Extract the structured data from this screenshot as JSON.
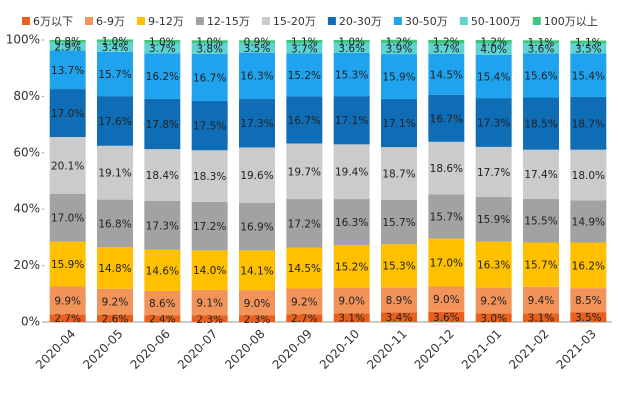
{
  "chart_data": {
    "type": "stacked_bar",
    "categories": [
      "2020-04",
      "2020-05",
      "2020-06",
      "2020-07",
      "2020-08",
      "2020-09",
      "2020-10",
      "2020-11",
      "2020-12",
      "2021-01",
      "2021-02",
      "2021-03"
    ],
    "ylim": [
      0,
      100
    ],
    "yticks": [
      {
        "value": 0,
        "label": "0%"
      },
      {
        "value": 20,
        "label": "20%"
      },
      {
        "value": 40,
        "label": "40%"
      },
      {
        "value": 60,
        "label": "60%"
      },
      {
        "value": 80,
        "label": "80%"
      },
      {
        "value": 100,
        "label": "100%"
      }
    ],
    "series": [
      {
        "name": "6万以下",
        "color": "#e8601c",
        "values": [
          2.7,
          2.6,
          2.4,
          2.3,
          2.3,
          2.7,
          3.1,
          3.4,
          3.6,
          3.0,
          3.1,
          3.5
        ],
        "value_labels": [
          "2.7%",
          "2.6%",
          "2.4%",
          "2.3%",
          "2.3%",
          "2.7%",
          "3.1%",
          "3.4%",
          "3.6%",
          "3.0%",
          "3.1%",
          "3.5%"
        ]
      },
      {
        "name": "6-9万",
        "color": "#f2935a",
        "values": [
          9.9,
          9.2,
          8.6,
          9.1,
          9.0,
          9.2,
          9.0,
          8.9,
          9.0,
          9.2,
          9.4,
          8.5
        ],
        "value_labels": [
          "9.9%",
          "9.2%",
          "8.6%",
          "9.1%",
          "9.0%",
          "9.2%",
          "9.0%",
          "8.9%",
          "9.0%",
          "9.2%",
          "9.4%",
          "8.5%"
        ]
      },
      {
        "name": "9-12万",
        "color": "#ffc000",
        "values": [
          15.9,
          14.8,
          14.6,
          14.0,
          14.1,
          14.5,
          15.2,
          15.3,
          17.0,
          16.3,
          15.7,
          16.2
        ],
        "value_labels": [
          "15.9%",
          "14.8%",
          "14.6%",
          "14.0%",
          "14.1%",
          "14.5%",
          "15.2%",
          "15.3%",
          "17.0%",
          "16.3%",
          "15.7%",
          "16.2%"
        ]
      },
      {
        "name": "12-15万",
        "color": "#a2a2a2",
        "values": [
          17.0,
          16.8,
          17.3,
          17.2,
          16.9,
          17.2,
          16.3,
          15.7,
          15.7,
          15.9,
          15.5,
          14.9
        ],
        "value_labels": [
          "17.0%",
          "16.8%",
          "17.3%",
          "17.2%",
          "16.9%",
          "17.2%",
          "16.3%",
          "15.7%",
          "15.7%",
          "15.9%",
          "15.5%",
          "14.9%"
        ]
      },
      {
        "name": "15-20万",
        "color": "#cbcbcb",
        "values": [
          20.1,
          19.1,
          18.4,
          18.3,
          19.6,
          19.7,
          19.4,
          18.7,
          18.6,
          17.7,
          17.4,
          18.0
        ],
        "value_labels": [
          "20.1%",
          "19.1%",
          "18.4%",
          "18.3%",
          "19.6%",
          "19.7%",
          "19.4%",
          "18.7%",
          "18.6%",
          "17.7%",
          "17.4%",
          "18.0%"
        ]
      },
      {
        "name": "20-30万",
        "color": "#0f6db5",
        "values": [
          17.0,
          17.6,
          17.8,
          17.5,
          17.3,
          16.7,
          17.1,
          17.1,
          16.7,
          17.3,
          18.5,
          18.7
        ],
        "value_labels": [
          "17.0%",
          "17.6%",
          "17.8%",
          "17.5%",
          "17.3%",
          "16.7%",
          "17.1%",
          "17.1%",
          "16.7%",
          "17.3%",
          "18.5%",
          "18.7%"
        ]
      },
      {
        "name": "30-50万",
        "color": "#1fa3ee",
        "values": [
          13.7,
          15.7,
          16.2,
          16.7,
          16.3,
          15.2,
          15.3,
          15.9,
          14.5,
          15.4,
          15.6,
          15.4
        ],
        "value_labels": [
          "13.7%",
          "15.7%",
          "16.2%",
          "16.7%",
          "16.3%",
          "15.2%",
          "15.3%",
          "15.9%",
          "14.5%",
          "15.4%",
          "15.6%",
          "15.4%"
        ]
      },
      {
        "name": "50-100万",
        "color": "#5ed3d3",
        "values": [
          2.9,
          3.4,
          3.7,
          3.8,
          3.5,
          3.7,
          3.6,
          3.9,
          3.7,
          4.0,
          3.6,
          3.5
        ],
        "value_labels": [
          "2.9%",
          "3.4%",
          "3.7%",
          "3.8%",
          "3.5%",
          "3.7%",
          "3.6%",
          "3.9%",
          "3.7%",
          "4.0%",
          "3.6%",
          "3.5%"
        ]
      },
      {
        "name": "100万以上",
        "color": "#3dc77a",
        "values": [
          0.8,
          1.0,
          1.0,
          1.0,
          0.9,
          1.1,
          1.0,
          1.2,
          1.2,
          1.2,
          1.1,
          1.1
        ],
        "value_labels": [
          "0.8%",
          "1.0%",
          "1.0%",
          "1.0%",
          "0.9%",
          "1.1%",
          "1.0%",
          "1.2%",
          "1.2%",
          "1.2%",
          "1.1%",
          "1.1%"
        ]
      }
    ]
  }
}
